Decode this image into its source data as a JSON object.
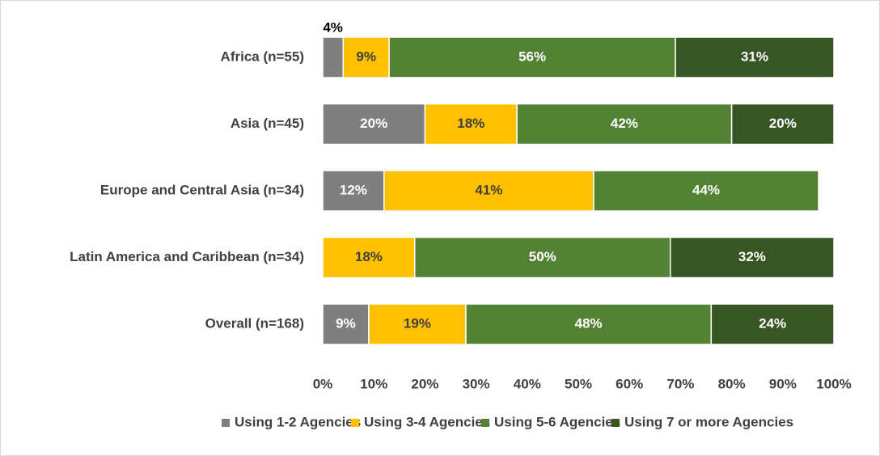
{
  "chart_data": {
    "type": "stacked-bar-horizontal",
    "categories": [
      "Africa (n=55)",
      "Asia (n=45)",
      "Europe and Central Asia (n=34)",
      "Latin America and Caribbean (n=34)",
      "Overall (n=168)"
    ],
    "series": [
      {
        "name": "Using 1-2 Agencies",
        "color": "#7f7f7f",
        "label_color": "#ffffff",
        "values": [
          4,
          20,
          12,
          null,
          9
        ],
        "value_labels": [
          "4%",
          "20%",
          "12%",
          null,
          "9%"
        ]
      },
      {
        "name": "Using 3-4 Agencies",
        "color": "#ffc000",
        "label_color": "#404040",
        "values": [
          9,
          18,
          41,
          18,
          19
        ],
        "value_labels": [
          "9%",
          "18%",
          "41%",
          "18%",
          "19%"
        ]
      },
      {
        "name": "Using 5-6 Agencies",
        "color": "#548235",
        "label_color": "#ffffff",
        "values": [
          56,
          42,
          44,
          50,
          48
        ],
        "value_labels": [
          "56%",
          "42%",
          "44%",
          "50%",
          "48%"
        ]
      },
      {
        "name": "Using 7 or more Agencies",
        "color": "#375623",
        "label_color": "#ffffff",
        "values": [
          31,
          20,
          null,
          32,
          24
        ],
        "value_labels": [
          "31%",
          "20%",
          null,
          "32%",
          "24%"
        ]
      }
    ],
    "xlim": [
      0,
      100
    ],
    "xticks": [
      {
        "value": 0,
        "label": "0%"
      },
      {
        "value": 10,
        "label": "10%"
      },
      {
        "value": 20,
        "label": "20%"
      },
      {
        "value": 30,
        "label": "30%"
      },
      {
        "value": 40,
        "label": "40%"
      },
      {
        "value": 50,
        "label": "50%"
      },
      {
        "value": 60,
        "label": "60%"
      },
      {
        "value": 70,
        "label": "70%"
      },
      {
        "value": 80,
        "label": "80%"
      },
      {
        "value": 90,
        "label": "90%"
      },
      {
        "value": 100,
        "label": "100%"
      }
    ],
    "legend": "bottom"
  }
}
